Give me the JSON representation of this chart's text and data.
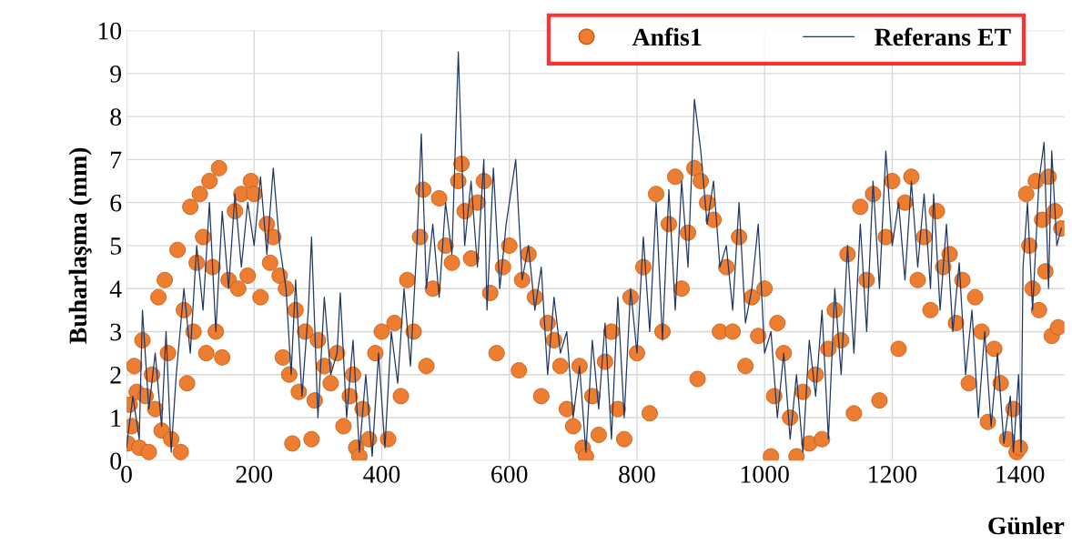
{
  "chart_data": {
    "type": "scatter",
    "xlabel": "Günler",
    "ylabel": "Buharlaşma (mm)",
    "xlim": [
      0,
      1470
    ],
    "ylim": [
      0,
      10
    ],
    "xticks": [
      0,
      200,
      400,
      600,
      800,
      1000,
      1200,
      1400
    ],
    "yticks": [
      0,
      1,
      2,
      3,
      4,
      5,
      6,
      7,
      8,
      9,
      10
    ],
    "grid": true,
    "legend": "top right",
    "series": [
      {
        "name": "Anfis1",
        "color": "#ed7d31",
        "marker": "circle",
        "x": [
          2,
          5,
          8,
          12,
          16,
          20,
          25,
          30,
          35,
          40,
          45,
          50,
          55,
          60,
          65,
          70,
          80,
          85,
          90,
          95,
          100,
          105,
          110,
          115,
          120,
          125,
          130,
          135,
          140,
          145,
          150,
          160,
          170,
          175,
          180,
          190,
          195,
          200,
          210,
          220,
          225,
          230,
          240,
          245,
          250,
          255,
          260,
          265,
          270,
          280,
          290,
          295,
          300,
          310,
          320,
          330,
          340,
          350,
          355,
          360,
          365,
          370,
          380,
          390,
          400,
          410,
          420,
          430,
          440,
          450,
          460,
          465,
          470,
          480,
          490,
          500,
          510,
          520,
          525,
          530,
          540,
          550,
          560,
          570,
          580,
          590,
          600,
          615,
          620,
          630,
          640,
          650,
          660,
          670,
          680,
          690,
          700,
          710,
          715,
          720,
          730,
          740,
          750,
          760,
          770,
          780,
          790,
          800,
          810,
          820,
          830,
          840,
          850,
          860,
          870,
          880,
          890,
          895,
          900,
          910,
          920,
          930,
          940,
          950,
          960,
          970,
          980,
          990,
          1000,
          1010,
          1015,
          1020,
          1030,
          1040,
          1050,
          1060,
          1070,
          1080,
          1090,
          1100,
          1110,
          1120,
          1130,
          1140,
          1150,
          1160,
          1170,
          1180,
          1190,
          1200,
          1210,
          1220,
          1230,
          1240,
          1250,
          1260,
          1270,
          1280,
          1290,
          1300,
          1310,
          1320,
          1330,
          1340,
          1350,
          1360,
          1370,
          1380,
          1390,
          1395,
          1400,
          1410,
          1415,
          1420,
          1425,
          1430,
          1435,
          1440,
          1445,
          1450,
          1455,
          1460,
          1465
        ],
        "values": [
          0.4,
          1.3,
          0.8,
          2.2,
          1.6,
          0.3,
          2.8,
          1.5,
          0.2,
          2.0,
          1.2,
          3.8,
          0.7,
          4.2,
          2.5,
          0.5,
          4.9,
          0.2,
          3.5,
          1.8,
          5.9,
          3.0,
          4.6,
          6.2,
          5.2,
          2.5,
          6.5,
          4.5,
          3.0,
          6.8,
          2.4,
          4.2,
          5.8,
          4.0,
          6.2,
          4.3,
          6.5,
          6.2,
          3.8,
          5.5,
          4.6,
          5.2,
          4.3,
          2.4,
          4.0,
          2.0,
          0.4,
          3.5,
          1.6,
          3.0,
          0.5,
          1.4,
          2.8,
          2.2,
          1.8,
          2.5,
          0.8,
          1.5,
          2.0,
          0.3,
          0.1,
          1.2,
          0.5,
          2.5,
          3.0,
          0.5,
          3.2,
          1.5,
          4.2,
          3.0,
          5.2,
          6.3,
          2.2,
          4.0,
          6.1,
          5.0,
          4.6,
          6.5,
          6.9,
          5.8,
          4.7,
          6.0,
          6.5,
          3.9,
          2.5,
          4.5,
          5.0,
          2.1,
          4.2,
          4.8,
          3.8,
          1.5,
          3.2,
          2.8,
          2.2,
          1.2,
          0.8,
          2.2,
          0.3,
          0.1,
          1.5,
          0.6,
          2.3,
          3.0,
          1.2,
          0.5,
          3.8,
          2.5,
          4.5,
          1.1,
          6.2,
          3.0,
          5.5,
          6.6,
          4.0,
          5.3,
          6.8,
          1.9,
          6.5,
          6.0,
          5.6,
          3.0,
          4.5,
          3.0,
          5.2,
          2.2,
          3.8,
          2.9,
          4.0,
          0.1,
          1.5,
          3.2,
          2.5,
          1.0,
          0.1,
          1.6,
          0.4,
          2.0,
          0.5,
          2.6,
          3.5,
          2.8,
          4.8,
          1.1,
          5.9,
          4.2,
          6.2,
          1.4,
          5.2,
          6.5,
          2.6,
          6.0,
          6.6,
          4.2,
          5.2,
          3.5,
          5.8,
          4.5,
          4.8,
          3.2,
          4.2,
          1.8,
          3.8,
          3.0,
          0.9,
          2.6,
          1.8,
          0.5,
          1.2,
          0.2,
          0.3,
          6.2,
          5.0,
          4.0,
          6.5,
          3.5,
          5.6,
          4.4,
          6.6,
          2.9,
          5.8,
          3.1,
          5.4
        ]
      },
      {
        "name": "Referans ET",
        "type": "line",
        "color": "#203864",
        "marker": "none",
        "line_style": "solid",
        "x": [
          0,
          10,
          20,
          25,
          35,
          45,
          55,
          62,
          70,
          78,
          90,
          100,
          110,
          120,
          130,
          140,
          150,
          160,
          170,
          180,
          190,
          200,
          210,
          220,
          230,
          240,
          250,
          258,
          265,
          275,
          285,
          290,
          300,
          310,
          320,
          330,
          335,
          345,
          355,
          365,
          375,
          385,
          395,
          405,
          415,
          425,
          435,
          445,
          455,
          462,
          470,
          480,
          490,
          500,
          510,
          520,
          530,
          540,
          550,
          560,
          565,
          575,
          585,
          595,
          610,
          620,
          630,
          640,
          650,
          660,
          670,
          680,
          690,
          700,
          710,
          720,
          730,
          740,
          750,
          760,
          770,
          780,
          790,
          800,
          810,
          820,
          830,
          840,
          850,
          860,
          870,
          880,
          890,
          900,
          910,
          920,
          930,
          940,
          950,
          960,
          970,
          980,
          990,
          1000,
          1010,
          1020,
          1030,
          1040,
          1050,
          1060,
          1070,
          1080,
          1090,
          1100,
          1110,
          1120,
          1130,
          1140,
          1150,
          1160,
          1170,
          1180,
          1190,
          1200,
          1210,
          1220,
          1230,
          1240,
          1250,
          1260,
          1265,
          1275,
          1285,
          1295,
          1305,
          1315,
          1325,
          1335,
          1345,
          1355,
          1365,
          1375,
          1385,
          1390,
          1398,
          1402,
          1405,
          1412,
          1420,
          1430,
          1438,
          1445,
          1450,
          1458,
          1465
        ],
        "values": [
          0.3,
          1.5,
          0.5,
          3.5,
          1.2,
          2.5,
          0.8,
          3.0,
          0.2,
          2.0,
          4.0,
          2.5,
          5.0,
          3.5,
          6.0,
          3.0,
          5.8,
          4.0,
          6.2,
          4.5,
          6.0,
          5.0,
          6.6,
          4.8,
          6.8,
          5.0,
          4.0,
          2.0,
          4.2,
          1.5,
          3.5,
          5.2,
          1.0,
          3.8,
          2.0,
          2.5,
          3.9,
          1.0,
          2.8,
          0.2,
          2.0,
          0.1,
          2.5,
          0.3,
          3.0,
          1.8,
          4.0,
          2.2,
          5.0,
          7.6,
          4.0,
          5.5,
          3.8,
          6.0,
          4.8,
          9.5,
          5.0,
          6.5,
          4.5,
          7.0,
          3.5,
          6.8,
          4.0,
          5.5,
          7.0,
          4.2,
          5.0,
          3.5,
          4.5,
          2.0,
          3.8,
          2.5,
          3.0,
          1.0,
          2.2,
          0.2,
          2.8,
          1.2,
          3.2,
          0.5,
          3.8,
          1.0,
          4.0,
          2.5,
          5.2,
          3.0,
          6.0,
          2.8,
          6.3,
          3.5,
          6.5,
          4.5,
          8.4,
          7.2,
          5.5,
          6.5,
          4.5,
          5.0,
          3.5,
          6.0,
          3.2,
          4.0,
          5.5,
          2.5,
          3.0,
          1.0,
          2.5,
          0.5,
          2.0,
          0.2,
          2.8,
          1.5,
          3.5,
          0.5,
          4.0,
          2.0,
          5.0,
          2.5,
          5.5,
          3.0,
          6.5,
          4.0,
          7.2,
          5.0,
          6.0,
          4.2,
          6.5,
          4.5,
          6.2,
          4.0,
          6.2,
          3.5,
          5.5,
          3.0,
          4.6,
          2.0,
          3.5,
          1.0,
          3.0,
          0.8,
          2.5,
          0.4,
          1.5,
          0.2,
          2.0,
          0.2,
          4.5,
          6.0,
          3.5,
          6.5,
          7.4,
          4.0,
          7.2,
          5.0,
          5.4
        ]
      }
    ]
  }
}
